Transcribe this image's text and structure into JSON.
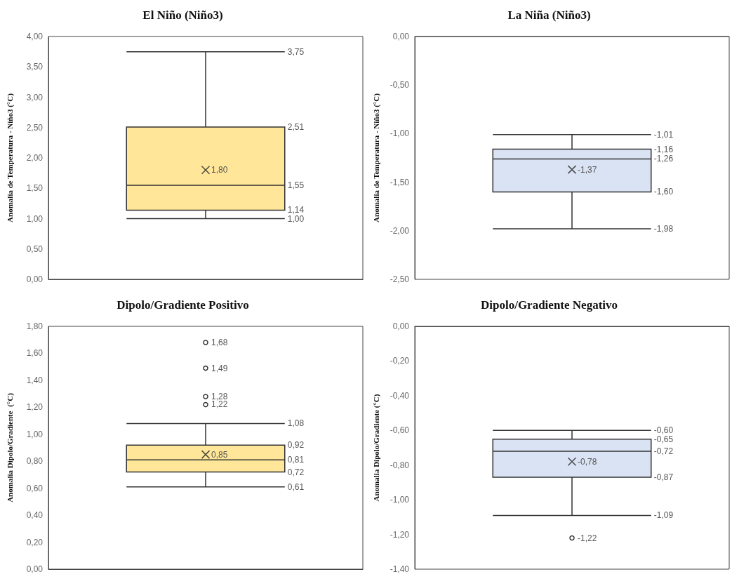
{
  "chart_data": [
    {
      "type": "box",
      "title": "El Niño (Niño3)",
      "ylabel": "Anomalia de Temperatura - Niño3 (°C)",
      "categories": [
        null
      ],
      "color": "#ffe699",
      "boxes": [
        {
          "low": 1.0,
          "q1": 1.14,
          "median": 1.55,
          "q3": 2.51,
          "high": 3.75,
          "mean": 1.8
        }
      ],
      "ylim": [
        0,
        4
      ],
      "yticks": [
        {
          "value": 0,
          "label": "0,00"
        },
        {
          "value": 0.5,
          "label": "0,50"
        },
        {
          "value": 1,
          "label": "1,00"
        },
        {
          "value": 1.5,
          "label": "1,50"
        },
        {
          "value": 2,
          "label": "2,00"
        },
        {
          "value": 2.5,
          "label": "2,50"
        },
        {
          "value": 3,
          "label": "3,00"
        },
        {
          "value": 3.5,
          "label": "3,50"
        },
        {
          "value": 4,
          "label": "4,00"
        }
      ],
      "annotations": [
        "3,75",
        "2,51",
        "1,80",
        "1,55",
        "1,14",
        "1,00"
      ]
    },
    {
      "type": "box",
      "title": "La Niña (Niño3)",
      "ylabel": "Anomalia de Temperatura - Niño3 (°C)",
      "categories": [
        null
      ],
      "color": "#dae3f3",
      "boxes": [
        {
          "low": -1.98,
          "q1": -1.6,
          "median": -1.26,
          "q3": -1.16,
          "high": -1.01,
          "mean": -1.37
        }
      ],
      "ylim": [
        -2.5,
        0
      ],
      "yticks": [
        {
          "value": -2.5,
          "label": "-2,50"
        },
        {
          "value": -2,
          "label": "-2,00"
        },
        {
          "value": -1.5,
          "label": "-1,50"
        },
        {
          "value": -1,
          "label": "-1,00"
        },
        {
          "value": -0.5,
          "label": "-0,50"
        },
        {
          "value": 0,
          "label": "0,00"
        }
      ],
      "annotations": [
        "-1,01",
        "-1,16",
        "-1,26",
        "-1,37",
        "-1,60",
        "-1,98"
      ]
    },
    {
      "type": "box",
      "title": "Dipolo/Gradiente Positivo",
      "ylabel": "Anomalia Dipolo/Gradiente  (°C)",
      "categories": [
        null
      ],
      "color": "#ffe699",
      "boxes": [
        {
          "low": 0.61,
          "q1": 0.72,
          "median": 0.81,
          "q3": 0.92,
          "high": 1.08,
          "mean": 0.85,
          "outliers": [
            1.22,
            1.28,
            1.49,
            1.68
          ]
        }
      ],
      "ylim": [
        0,
        1.8
      ],
      "yticks": [
        {
          "value": 0,
          "label": "0,00"
        },
        {
          "value": 0.2,
          "label": "0,20"
        },
        {
          "value": 0.4,
          "label": "0,40"
        },
        {
          "value": 0.6,
          "label": "0,60"
        },
        {
          "value": 0.8,
          "label": "0,80"
        },
        {
          "value": 1,
          "label": "1,00"
        },
        {
          "value": 1.2,
          "label": "1,20"
        },
        {
          "value": 1.4,
          "label": "1,40"
        },
        {
          "value": 1.6,
          "label": "1,60"
        },
        {
          "value": 1.8,
          "label": "1,80"
        }
      ],
      "annotations": [
        "1,68",
        "1,49",
        "1,28",
        "1,22",
        "1,08",
        "0,92",
        "0,85",
        "0,81",
        "0,72",
        "0,61"
      ]
    },
    {
      "type": "box",
      "title": "Dipolo/Gradiente Negativo",
      "ylabel": "Anomalia Dipolo/Gradiente (°C)",
      "categories": [
        null
      ],
      "color": "#dae3f3",
      "boxes": [
        {
          "low": -1.09,
          "q1": -0.87,
          "median": -0.72,
          "q3": -0.65,
          "high": -0.6,
          "mean": -0.78,
          "outliers": [
            -1.22
          ]
        }
      ],
      "ylim": [
        -1.4,
        0
      ],
      "yticks": [
        {
          "value": -1.4,
          "label": "-1,40"
        },
        {
          "value": -1.2,
          "label": "-1,20"
        },
        {
          "value": -1,
          "label": "-1,00"
        },
        {
          "value": -0.8,
          "label": "-0,80"
        },
        {
          "value": -0.6,
          "label": "-0,60"
        },
        {
          "value": -0.4,
          "label": "-0,40"
        },
        {
          "value": -0.2,
          "label": "-0,20"
        },
        {
          "value": 0,
          "label": "0,00"
        }
      ],
      "annotations": [
        "-0,60",
        "-0,65",
        "-0,72",
        "-0,78",
        "-0,87",
        "-1,09",
        "-1,22"
      ]
    }
  ]
}
